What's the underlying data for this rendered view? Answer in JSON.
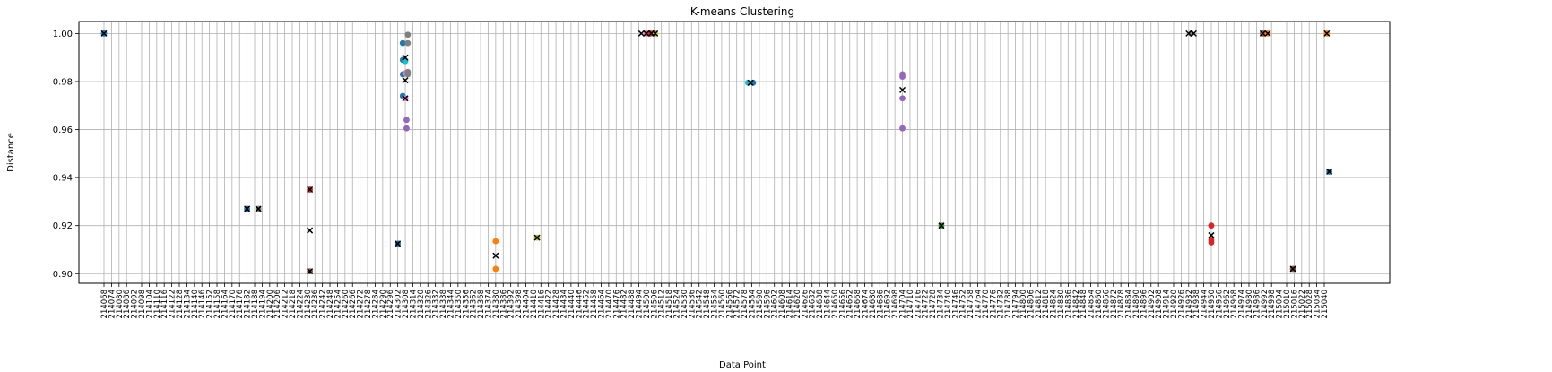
{
  "chart_data": {
    "type": "scatter",
    "title": "K-means Clustering",
    "xlabel": "Data Point",
    "ylabel": "Distance",
    "ylim": [
      0.896,
      1.005
    ],
    "yticks": [
      "0.90",
      "0.92",
      "0.94",
      "0.96",
      "0.98",
      "1.00"
    ],
    "ytick_values": [
      0.9,
      0.92,
      0.94,
      0.96,
      0.98,
      1.0
    ],
    "grid": true,
    "x_tick_start": 214068,
    "x_tick_end": 215040,
    "x_tick_step": 6,
    "point_colors": {
      "blue": "#1f77b4",
      "orange": "#ff7f0e",
      "green": "#2ca02c",
      "red": "#d62728",
      "purple": "#9467bd",
      "brown": "#8c564b",
      "pink": "#e377c2",
      "gray": "#7f7f7f",
      "olive": "#bcbd22",
      "cyan": "#17becf"
    },
    "centroid_marker": "x",
    "centroid_color": "#000000",
    "points": [
      {
        "x": 214068,
        "y": 1.0,
        "c": "purple"
      },
      {
        "x": 214068,
        "y": 1.0,
        "c": "blue"
      },
      {
        "x": 214182,
        "y": 0.927,
        "c": "blue"
      },
      {
        "x": 214191,
        "y": 0.927,
        "c": "gray"
      },
      {
        "x": 214232,
        "y": 0.935,
        "c": "red"
      },
      {
        "x": 214232,
        "y": 0.901,
        "c": "brown"
      },
      {
        "x": 214302,
        "y": 0.9125,
        "c": "blue"
      },
      {
        "x": 214306,
        "y": 0.996,
        "c": "blue"
      },
      {
        "x": 214306,
        "y": 0.989,
        "c": "blue"
      },
      {
        "x": 214306,
        "y": 0.983,
        "c": "blue"
      },
      {
        "x": 214306,
        "y": 0.974,
        "c": "blue"
      },
      {
        "x": 214308,
        "y": 0.9885,
        "c": "cyan"
      },
      {
        "x": 214308,
        "y": 0.9835,
        "c": "pink"
      },
      {
        "x": 214308,
        "y": 0.973,
        "c": "pink"
      },
      {
        "x": 214309,
        "y": 0.964,
        "c": "purple"
      },
      {
        "x": 214309,
        "y": 0.9605,
        "c": "purple"
      },
      {
        "x": 214310,
        "y": 0.996,
        "c": "gray"
      },
      {
        "x": 214310,
        "y": 0.9995,
        "c": "gray"
      },
      {
        "x": 214310,
        "y": 0.984,
        "c": "gray"
      },
      {
        "x": 214310,
        "y": 0.983,
        "c": "gray"
      },
      {
        "x": 214380,
        "y": 0.9135,
        "c": "orange"
      },
      {
        "x": 214380,
        "y": 0.902,
        "c": "orange"
      },
      {
        "x": 214413,
        "y": 0.915,
        "c": "olive"
      },
      {
        "x": 214500,
        "y": 1.0,
        "c": "pink"
      },
      {
        "x": 214503,
        "y": 1.0,
        "c": "red"
      },
      {
        "x": 214507,
        "y": 1.0,
        "c": "olive"
      },
      {
        "x": 214581,
        "y": 0.9795,
        "c": "cyan"
      },
      {
        "x": 214585,
        "y": 0.9795,
        "c": "blue"
      },
      {
        "x": 214704,
        "y": 0.983,
        "c": "purple"
      },
      {
        "x": 214704,
        "y": 0.982,
        "c": "purple"
      },
      {
        "x": 214704,
        "y": 0.973,
        "c": "purple"
      },
      {
        "x": 214704,
        "y": 0.9605,
        "c": "purple"
      },
      {
        "x": 214735,
        "y": 0.92,
        "c": "green"
      },
      {
        "x": 214934,
        "y": 1.0,
        "c": "gray"
      },
      {
        "x": 214950,
        "y": 0.92,
        "c": "red"
      },
      {
        "x": 214950,
        "y": 0.914,
        "c": "red"
      },
      {
        "x": 214950,
        "y": 0.913,
        "c": "red"
      },
      {
        "x": 214991,
        "y": 1.0,
        "c": "brown"
      },
      {
        "x": 214995,
        "y": 1.0,
        "c": "orange"
      },
      {
        "x": 215015,
        "y": 0.902,
        "c": "brown"
      },
      {
        "x": 215042,
        "y": 1.0,
        "c": "orange"
      },
      {
        "x": 215044,
        "y": 0.9425,
        "c": "blue"
      }
    ],
    "centroids": [
      {
        "x": 214068,
        "y": 1.0
      },
      {
        "x": 214182,
        "y": 0.927
      },
      {
        "x": 214191,
        "y": 0.927
      },
      {
        "x": 214232,
        "y": 0.935
      },
      {
        "x": 214232,
        "y": 0.918
      },
      {
        "x": 214232,
        "y": 0.901
      },
      {
        "x": 214302,
        "y": 0.9125
      },
      {
        "x": 214308,
        "y": 0.99
      },
      {
        "x": 214308,
        "y": 0.9805
      },
      {
        "x": 214308,
        "y": 0.973
      },
      {
        "x": 214380,
        "y": 0.9075
      },
      {
        "x": 214413,
        "y": 0.915
      },
      {
        "x": 214496,
        "y": 1.0
      },
      {
        "x": 214500,
        "y": 1.0
      },
      {
        "x": 214504,
        "y": 1.0
      },
      {
        "x": 214507,
        "y": 1.0
      },
      {
        "x": 214583,
        "y": 0.9795
      },
      {
        "x": 214704,
        "y": 0.9765
      },
      {
        "x": 214735,
        "y": 0.92
      },
      {
        "x": 214932,
        "y": 1.0
      },
      {
        "x": 214936,
        "y": 1.0
      },
      {
        "x": 214950,
        "y": 0.916
      },
      {
        "x": 214991,
        "y": 1.0
      },
      {
        "x": 214995,
        "y": 1.0
      },
      {
        "x": 215015,
        "y": 0.902
      },
      {
        "x": 215042,
        "y": 1.0
      },
      {
        "x": 215044,
        "y": 0.9425
      }
    ]
  }
}
